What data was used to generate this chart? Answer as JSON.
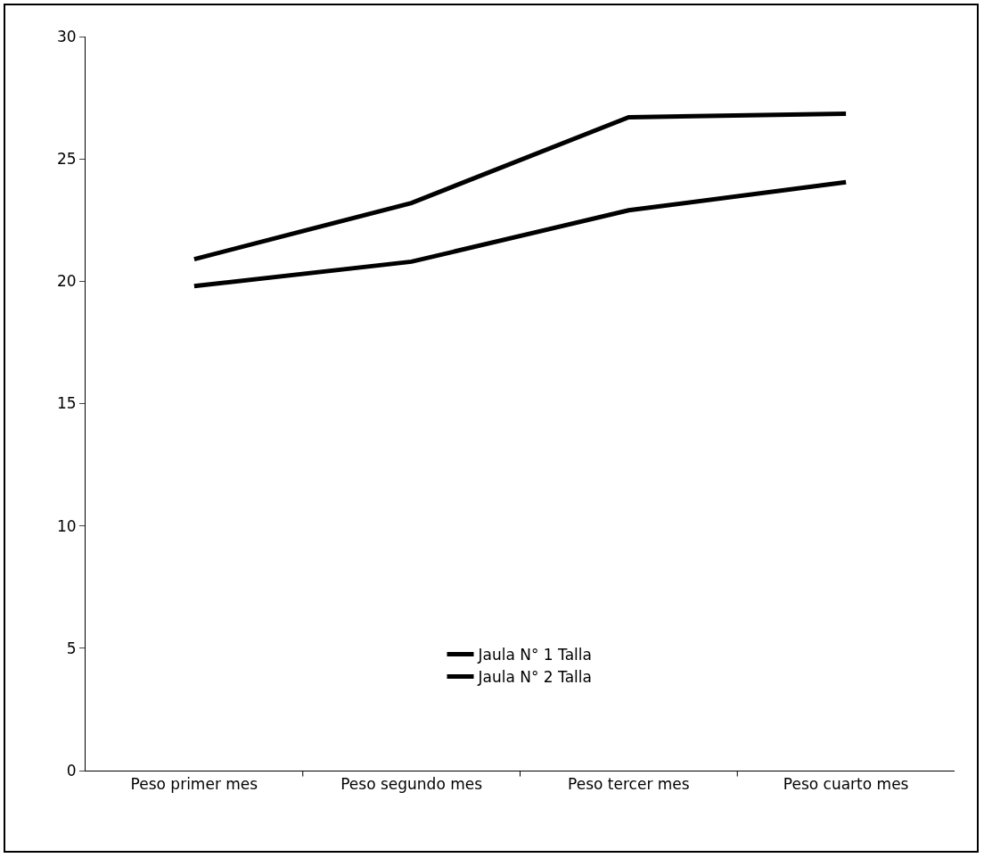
{
  "chart_data": {
    "type": "line",
    "categories": [
      "Peso primer mes",
      "Peso segundo mes",
      "Peso tercer mes",
      "Peso cuarto mes"
    ],
    "series": [
      {
        "name": "Jaula N° 1 Talla",
        "color": "#000000",
        "values": [
          20.9,
          23.2,
          26.7,
          26.85
        ]
      },
      {
        "name": "Jaula N° 2 Talla",
        "color": "#000000",
        "values": [
          19.8,
          20.8,
          22.9,
          24.05
        ]
      }
    ],
    "ylim": [
      0,
      30
    ],
    "yticks": [
      0,
      5,
      10,
      15,
      20,
      25,
      30
    ],
    "grid": false,
    "legend": "bottom",
    "marker": "none",
    "line_style": "solid"
  }
}
